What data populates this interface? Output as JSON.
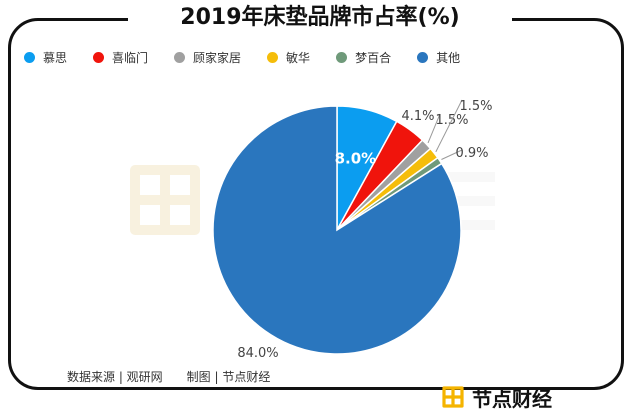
{
  "title": "2019年床垫品牌市占率(%)",
  "legend": [
    {
      "name": "慕思",
      "color": "#0b9df0"
    },
    {
      "name": "喜临门",
      "color": "#f0140c"
    },
    {
      "name": "顾家家居",
      "color": "#a0a0a0"
    },
    {
      "name": "敏华",
      "color": "#f5bd0a"
    },
    {
      "name": "梦百合",
      "color": "#6f9a7a"
    },
    {
      "name": "其他",
      "color": "#2a76be"
    }
  ],
  "chart_data": {
    "type": "pie",
    "title": "2019年床垫品牌市占率(%)",
    "categories": [
      "慕思",
      "喜临门",
      "顾家家居",
      "敏华",
      "梦百合",
      "其他"
    ],
    "values": [
      8.0,
      4.1,
      1.5,
      1.5,
      0.9,
      84.0
    ],
    "labels": [
      "8.0%",
      "4.1%",
      "1.5%",
      "1.5%",
      "0.9%",
      "84.0%"
    ],
    "colors": [
      "#0b9df0",
      "#f0140c",
      "#a0a0a0",
      "#f5bd0a",
      "#6f9a7a",
      "#2a76be"
    ],
    "legend_position": "top-left"
  },
  "source": "数据来源 | 观研网　　制图 | 节点财经",
  "brand": {
    "name": "节点财经",
    "icon": "node-logo-icon",
    "accent": "#f5b400"
  },
  "watermark_icon": "node-logo-watermark-icon"
}
